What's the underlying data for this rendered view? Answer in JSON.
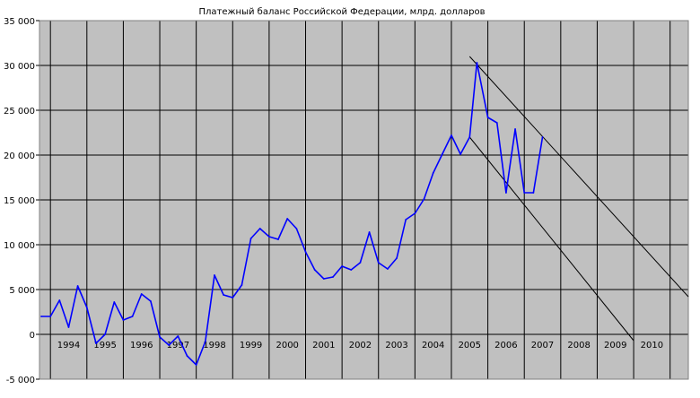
{
  "chart_data": {
    "type": "line",
    "title": "Платежный баланс Российской Федерации, млрд. долларов",
    "xlabel": "",
    "ylabel": "",
    "xlim": [
      1993.2,
      2011
    ],
    "ylim": [
      -5000,
      35000
    ],
    "grid": true,
    "legend": "none",
    "y_ticks": [
      "-5 000",
      "0",
      "5 000",
      "10 000",
      "15 000",
      "20 000",
      "25 000",
      "30 000",
      "35 000"
    ],
    "x_ticks": [
      "1994",
      "1995",
      "1996",
      "1997",
      "1998",
      "1999",
      "2000",
      "2001",
      "2002",
      "2003",
      "2004",
      "2005",
      "2006",
      "2007",
      "2008",
      "2009",
      "2010"
    ],
    "series": [
      {
        "color": "#0000ff",
        "points": [
          [
            1993.25,
            2000
          ],
          [
            1993.5,
            2000
          ],
          [
            1993.75,
            3800
          ],
          [
            1994.0,
            800
          ],
          [
            1994.25,
            5400
          ],
          [
            1994.5,
            3000
          ],
          [
            1994.75,
            -1000
          ],
          [
            1995.0,
            0
          ],
          [
            1995.25,
            3600
          ],
          [
            1995.5,
            1600
          ],
          [
            1995.75,
            2000
          ],
          [
            1996.0,
            4500
          ],
          [
            1996.25,
            3700
          ],
          [
            1996.5,
            -300
          ],
          [
            1996.75,
            -1200
          ],
          [
            1997.0,
            -200
          ],
          [
            1997.25,
            -2400
          ],
          [
            1997.5,
            -3400
          ],
          [
            1997.75,
            -800
          ],
          [
            1998.0,
            6600
          ],
          [
            1998.25,
            4400
          ],
          [
            1998.5,
            4100
          ],
          [
            1998.75,
            5500
          ],
          [
            1999.0,
            10700
          ],
          [
            1999.25,
            11800
          ],
          [
            1999.5,
            10900
          ],
          [
            1999.75,
            10600
          ],
          [
            2000.0,
            12900
          ],
          [
            2000.25,
            11800
          ],
          [
            2000.5,
            9200
          ],
          [
            2000.75,
            7200
          ],
          [
            2001.0,
            6200
          ],
          [
            2001.25,
            6400
          ],
          [
            2001.5,
            7600
          ],
          [
            2001.75,
            7200
          ],
          [
            2002.0,
            8000
          ],
          [
            2002.25,
            11400
          ],
          [
            2002.5,
            8000
          ],
          [
            2002.75,
            7300
          ],
          [
            2003.0,
            8500
          ],
          [
            2003.25,
            12800
          ],
          [
            2003.5,
            13500
          ],
          [
            2003.75,
            15100
          ],
          [
            2004.0,
            18000
          ],
          [
            2004.25,
            20100
          ],
          [
            2004.5,
            22200
          ],
          [
            2004.75,
            20100
          ],
          [
            2005.0,
            22000
          ],
          [
            2005.2,
            30300
          ],
          [
            2005.5,
            24200
          ],
          [
            2005.75,
            23600
          ],
          [
            2006.0,
            15800
          ],
          [
            2006.25,
            22900
          ],
          [
            2006.5,
            15800
          ],
          [
            2006.75,
            15800
          ],
          [
            2007.0,
            22000
          ]
        ]
      }
    ],
    "trend_lines": [
      {
        "color": "#000000",
        "points": [
          [
            2005.0,
            31000
          ],
          [
            2011.0,
            4200
          ]
        ]
      },
      {
        "color": "#000000",
        "points": [
          [
            2005.0,
            22000
          ],
          [
            2009.5,
            -700
          ]
        ]
      }
    ]
  }
}
